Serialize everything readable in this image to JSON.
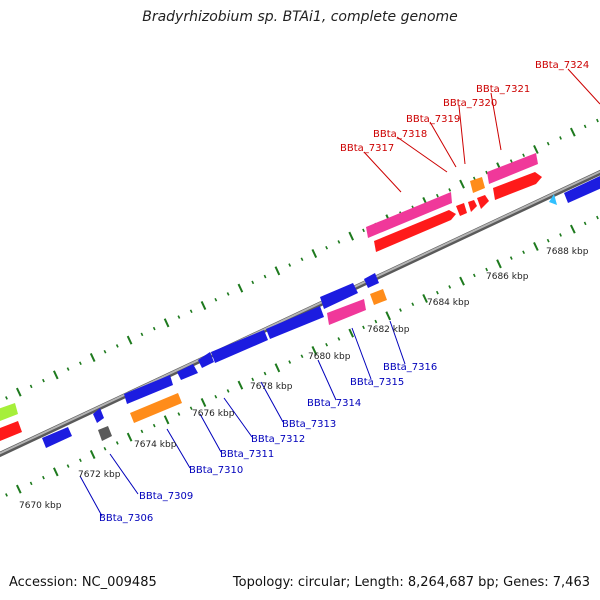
{
  "title": "Bradyrhizobium sp. BTAi1, complete genome",
  "footer": {
    "accession": "Accession: NC_009485",
    "summary": "Topology: circular; Length: 8,264,687 bp; Genes: 7,463"
  },
  "colors": {
    "backbone": "#8c8c8c",
    "ticks": "#1e7a1e",
    "label_forward": "#cc0000",
    "label_reverse": "#0000bb",
    "gene_magenta": "#f0389a",
    "gene_red": "#ff1a1a",
    "gene_blue": "#1c1ce0",
    "gene_orange": "#ff8c1a",
    "gene_green": "#a6ef3a",
    "gene_gray": "#5a5a5a",
    "gene_cyan": "#30c0ff"
  },
  "kbp_labels": [
    "7670 kbp",
    "7672 kbp",
    "7674 kbp",
    "7676 kbp",
    "7678 kbp",
    "7680 kbp",
    "7682 kbp",
    "7684 kbp",
    "7686 kbp",
    "7688 kbp"
  ],
  "forward_labels": [
    "BBta_7317",
    "BBta_7318",
    "BBta_7319",
    "BBta_7320",
    "BBta_7321",
    "BBta_7324"
  ],
  "reverse_labels": [
    "BBta_7306",
    "BBta_7309",
    "BBta_7310",
    "BBta_7311",
    "BBta_7312",
    "BBta_7313",
    "BBta_7314",
    "BBta_7315",
    "BBta_7316"
  ]
}
